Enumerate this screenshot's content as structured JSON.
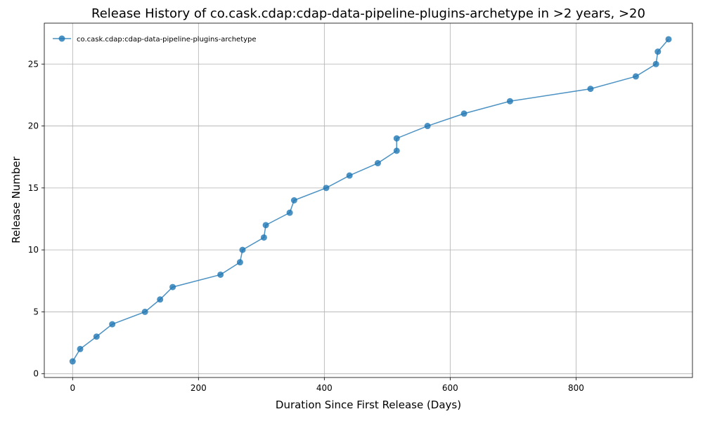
{
  "chart_data": {
    "type": "line",
    "title": "Release History of co.cask.cdap:cdap-data-pipeline-plugins-archetype in >2 years, >20",
    "xlabel": "Duration Since First Release (Days)",
    "ylabel": "Release Number",
    "xlim": [
      -45,
      985
    ],
    "ylim": [
      -0.3,
      28.3
    ],
    "xticks": [
      0,
      200,
      400,
      600,
      800
    ],
    "yticks": [
      0,
      5,
      10,
      15,
      20,
      25
    ],
    "grid": true,
    "legend_position": "top-left",
    "series": [
      {
        "name": "co.cask.cdap:cdap-data-pipeline-plugins-archetype",
        "color": "#1f77b4",
        "marker": "circle",
        "x": [
          0,
          12,
          38,
          63,
          115,
          139,
          159,
          235,
          266,
          270,
          304,
          307,
          345,
          352,
          403,
          440,
          485,
          515,
          515,
          564,
          622,
          695,
          823,
          895,
          927,
          930,
          947
        ],
        "y": [
          1,
          2,
          3,
          4,
          5,
          6,
          7,
          8,
          9,
          10,
          11,
          12,
          13,
          14,
          15,
          16,
          17,
          18,
          19,
          20,
          21,
          22,
          23,
          24,
          25,
          26,
          27
        ]
      }
    ]
  }
}
